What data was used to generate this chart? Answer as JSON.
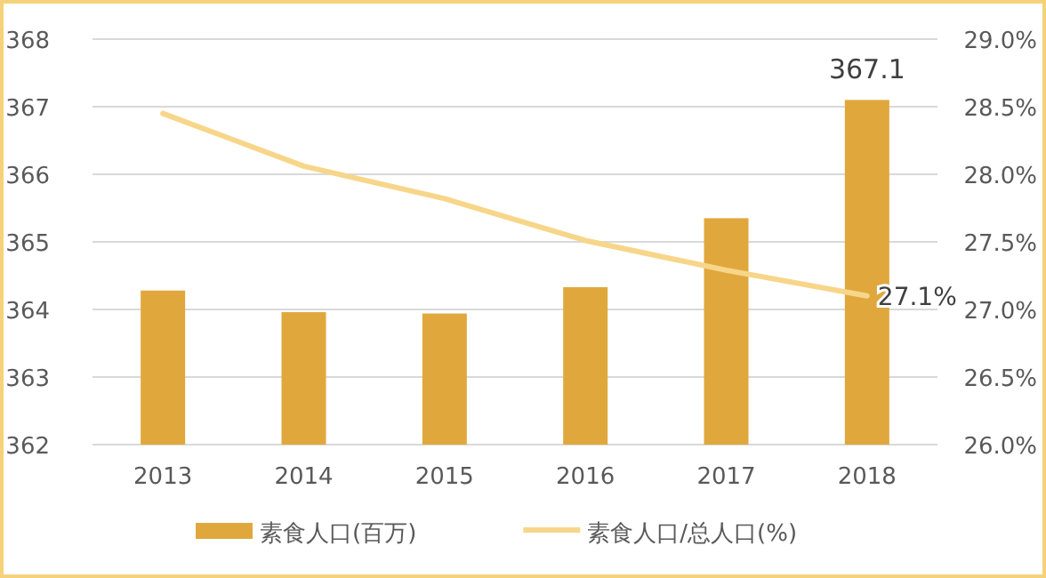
{
  "chart_data": {
    "type": "bar",
    "categories": [
      "2013",
      "2014",
      "2015",
      "2016",
      "2017",
      "2018"
    ],
    "series": [
      {
        "name": "素食人口(百万)",
        "color": "#e0a83c",
        "values": [
          364.28,
          363.96,
          363.94,
          364.33,
          365.35,
          367.1
        ],
        "value_labels": [
          null,
          null,
          null,
          null,
          null,
          "367.1"
        ]
      },
      {
        "name": "素食人口/总人口(%)",
        "type": "line",
        "axis": "y2",
        "color": "#f7d68a",
        "values": [
          28.45,
          28.06,
          27.82,
          27.51,
          27.29,
          27.1
        ],
        "value_labels": [
          null,
          null,
          null,
          null,
          null,
          "27.1%"
        ]
      }
    ],
    "ylim": [
      362,
      368
    ],
    "yticks": [
      362,
      363,
      364,
      365,
      366,
      367,
      368
    ],
    "y2lim": [
      26,
      29
    ],
    "y2ticks": [
      {
        "value": 26,
        "label": "26.0%"
      },
      {
        "value": 26.5,
        "label": "26.5%"
      },
      {
        "value": 27,
        "label": "27.0%"
      },
      {
        "value": 27.5,
        "label": "27.5%"
      },
      {
        "value": 28,
        "label": "28.0%"
      },
      {
        "value": 28.5,
        "label": "28.5%"
      },
      {
        "value": 29,
        "label": "29.0%"
      }
    ],
    "grid": "y",
    "legend": "bottom"
  }
}
